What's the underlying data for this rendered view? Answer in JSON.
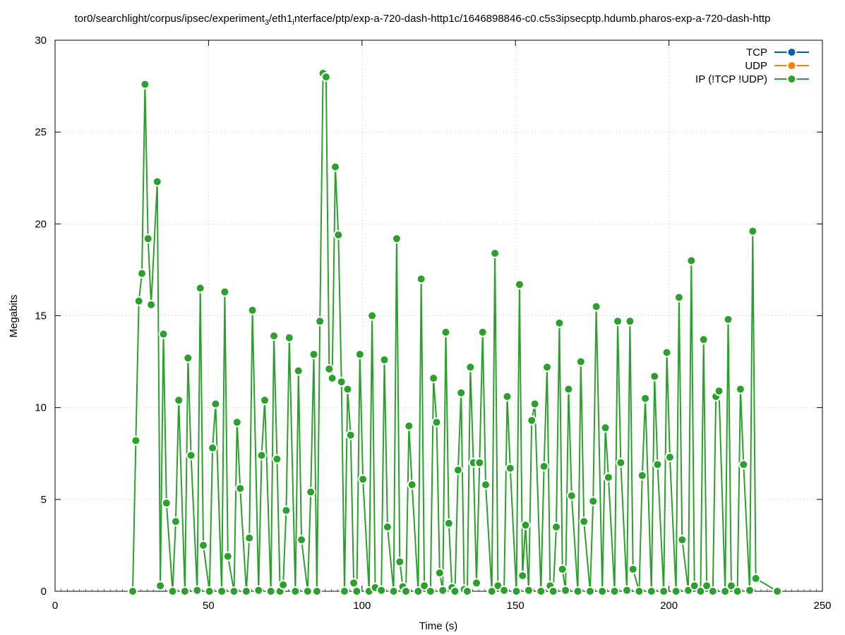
{
  "chart_data": {
    "type": "line",
    "title_parts": [
      {
        "text": "tor0/searchlight/corpus/ipsec/experiment"
      },
      {
        "text": "3",
        "sub": true
      },
      {
        "text": "/eth1"
      },
      {
        "text": "i",
        "sub": true
      },
      {
        "text": "nterface/ptp/exp-a-720-dash-http1c/1646898846-c0.c5s3ipsecptp.hdumb.pharos-exp-a-720-dash-http"
      }
    ],
    "xlabel": "Time (s)",
    "ylabel": "Megabits",
    "xlim": [
      0,
      250
    ],
    "ylim": [
      0,
      30
    ],
    "xticks": [
      0,
      50,
      100,
      150,
      200,
      250
    ],
    "yticks": [
      0,
      5,
      10,
      15,
      20,
      25,
      30
    ],
    "grid": true,
    "legend_position": "top-right",
    "series": [
      {
        "name": "TCP",
        "color": "#0060ad",
        "points": []
      },
      {
        "name": "UDP",
        "color": "#ff7f0e",
        "points": []
      },
      {
        "name": "IP (!TCP  !UDP)",
        "color": "#2ca02c",
        "points": [
          [
            25.3,
            0
          ],
          [
            26.3,
            8.2
          ],
          [
            27.3,
            15.8
          ],
          [
            28.3,
            17.3
          ],
          [
            29.3,
            27.6
          ],
          [
            30.3,
            19.2
          ],
          [
            31.3,
            15.6
          ],
          [
            33.3,
            22.3
          ],
          [
            34.3,
            0.3
          ],
          [
            35.3,
            14.0
          ],
          [
            36.3,
            4.8
          ],
          [
            38.3,
            0
          ],
          [
            39.3,
            3.8
          ],
          [
            40.3,
            10.4
          ],
          [
            42.3,
            0
          ],
          [
            43.3,
            12.7
          ],
          [
            44.3,
            7.4
          ],
          [
            46.3,
            0.05
          ],
          [
            47.3,
            16.5
          ],
          [
            48.3,
            2.5
          ],
          [
            50.3,
            0
          ],
          [
            51.3,
            7.8
          ],
          [
            52.3,
            10.2
          ],
          [
            54.3,
            0
          ],
          [
            55.3,
            16.3
          ],
          [
            56.3,
            1.9
          ],
          [
            58.3,
            0
          ],
          [
            59.3,
            9.2
          ],
          [
            60.3,
            5.6
          ],
          [
            62.3,
            0
          ],
          [
            63.3,
            2.9
          ],
          [
            64.3,
            15.3
          ],
          [
            66.3,
            0.05
          ],
          [
            67.3,
            7.4
          ],
          [
            68.3,
            10.4
          ],
          [
            70.3,
            0
          ],
          [
            71.3,
            13.9
          ],
          [
            72.3,
            7.2
          ],
          [
            73.3,
            0
          ],
          [
            74.3,
            0.35
          ],
          [
            75.3,
            4.4
          ],
          [
            76.3,
            13.8
          ],
          [
            78.3,
            0
          ],
          [
            79.3,
            12.0
          ],
          [
            80.3,
            2.8
          ],
          [
            82.3,
            0
          ],
          [
            83.3,
            5.4
          ],
          [
            84.3,
            12.9
          ],
          [
            85.3,
            0
          ],
          [
            86.3,
            14.7
          ],
          [
            87.3,
            28.2
          ],
          [
            88.3,
            28.0
          ],
          [
            89.3,
            12.1
          ],
          [
            90.3,
            11.6
          ],
          [
            91.3,
            23.1
          ],
          [
            92.3,
            19.4
          ],
          [
            93.3,
            11.4
          ],
          [
            94.3,
            0
          ],
          [
            95.3,
            11.0
          ],
          [
            96.3,
            8.5
          ],
          [
            97.3,
            0.45
          ],
          [
            98.3,
            0
          ],
          [
            99.3,
            12.9
          ],
          [
            100.3,
            6.1
          ],
          [
            102.3,
            0
          ],
          [
            103.3,
            15.0
          ],
          [
            104.3,
            0.2
          ],
          [
            106.3,
            0.05
          ],
          [
            107.3,
            12.6
          ],
          [
            108.3,
            3.5
          ],
          [
            110.3,
            0
          ],
          [
            111.3,
            19.2
          ],
          [
            112.3,
            1.6
          ],
          [
            113.3,
            0.25
          ],
          [
            114.3,
            0
          ],
          [
            115.3,
            9.0
          ],
          [
            116.3,
            5.8
          ],
          [
            118.3,
            0
          ],
          [
            119.3,
            17.0
          ],
          [
            120.3,
            0.3
          ],
          [
            122.3,
            0
          ],
          [
            123.3,
            11.6
          ],
          [
            124.3,
            9.2
          ],
          [
            125.3,
            1.0
          ],
          [
            126.3,
            0.05
          ],
          [
            127.3,
            14.1
          ],
          [
            128.3,
            3.7
          ],
          [
            129.3,
            0.2
          ],
          [
            130.3,
            0
          ],
          [
            131.3,
            6.6
          ],
          [
            132.3,
            10.8
          ],
          [
            133.3,
            0.1
          ],
          [
            134.3,
            0
          ],
          [
            135.3,
            12.2
          ],
          [
            136.3,
            7.0
          ],
          [
            137.3,
            0.45
          ],
          [
            138.3,
            7.0
          ],
          [
            139.3,
            14.1
          ],
          [
            140.3,
            5.8
          ],
          [
            142.3,
            0
          ],
          [
            143.3,
            18.4
          ],
          [
            144.3,
            0.3
          ],
          [
            146.3,
            0.05
          ],
          [
            147.3,
            10.6
          ],
          [
            148.3,
            6.7
          ],
          [
            150.3,
            0
          ],
          [
            151.3,
            16.7
          ],
          [
            152.3,
            0.85
          ],
          [
            153.3,
            3.6
          ],
          [
            154.3,
            0.05
          ],
          [
            155.3,
            9.3
          ],
          [
            156.3,
            10.2
          ],
          [
            158.3,
            0
          ],
          [
            159.3,
            6.8
          ],
          [
            160.3,
            12.2
          ],
          [
            161.3,
            0.3
          ],
          [
            162.3,
            0
          ],
          [
            163.3,
            3.5
          ],
          [
            164.3,
            14.6
          ],
          [
            165.3,
            1.2
          ],
          [
            166.3,
            0.05
          ],
          [
            167.3,
            11.0
          ],
          [
            168.3,
            5.2
          ],
          [
            170.3,
            0
          ],
          [
            171.3,
            12.5
          ],
          [
            172.3,
            3.8
          ],
          [
            174.3,
            0
          ],
          [
            175.3,
            4.9
          ],
          [
            176.3,
            15.5
          ],
          [
            178.3,
            0
          ],
          [
            179.3,
            8.9
          ],
          [
            180.3,
            6.2
          ],
          [
            182.3,
            0
          ],
          [
            183.3,
            14.7
          ],
          [
            184.3,
            7.0
          ],
          [
            186.3,
            0.05
          ],
          [
            187.3,
            14.7
          ],
          [
            188.3,
            1.2
          ],
          [
            190.3,
            0
          ],
          [
            191.3,
            6.3
          ],
          [
            192.3,
            10.5
          ],
          [
            194.3,
            0
          ],
          [
            195.3,
            11.7
          ],
          [
            196.3,
            6.9
          ],
          [
            198.3,
            0
          ],
          [
            199.3,
            13.0
          ],
          [
            200.3,
            7.3
          ],
          [
            202.3,
            0
          ],
          [
            203.3,
            16.0
          ],
          [
            204.3,
            2.8
          ],
          [
            206.3,
            0.05
          ],
          [
            207.3,
            18.0
          ],
          [
            208.3,
            0.3
          ],
          [
            210.3,
            0
          ],
          [
            211.3,
            13.7
          ],
          [
            212.3,
            0.3
          ],
          [
            214.3,
            0
          ],
          [
            215.3,
            10.6
          ],
          [
            216.3,
            10.9
          ],
          [
            218.3,
            0
          ],
          [
            219.3,
            14.8
          ],
          [
            220.3,
            0.3
          ],
          [
            222.3,
            0
          ],
          [
            223.3,
            11.0
          ],
          [
            224.3,
            6.9
          ],
          [
            226.3,
            0.05
          ],
          [
            227.3,
            19.6
          ],
          [
            228.3,
            0.7
          ],
          [
            235.3,
            0
          ]
        ]
      }
    ]
  }
}
